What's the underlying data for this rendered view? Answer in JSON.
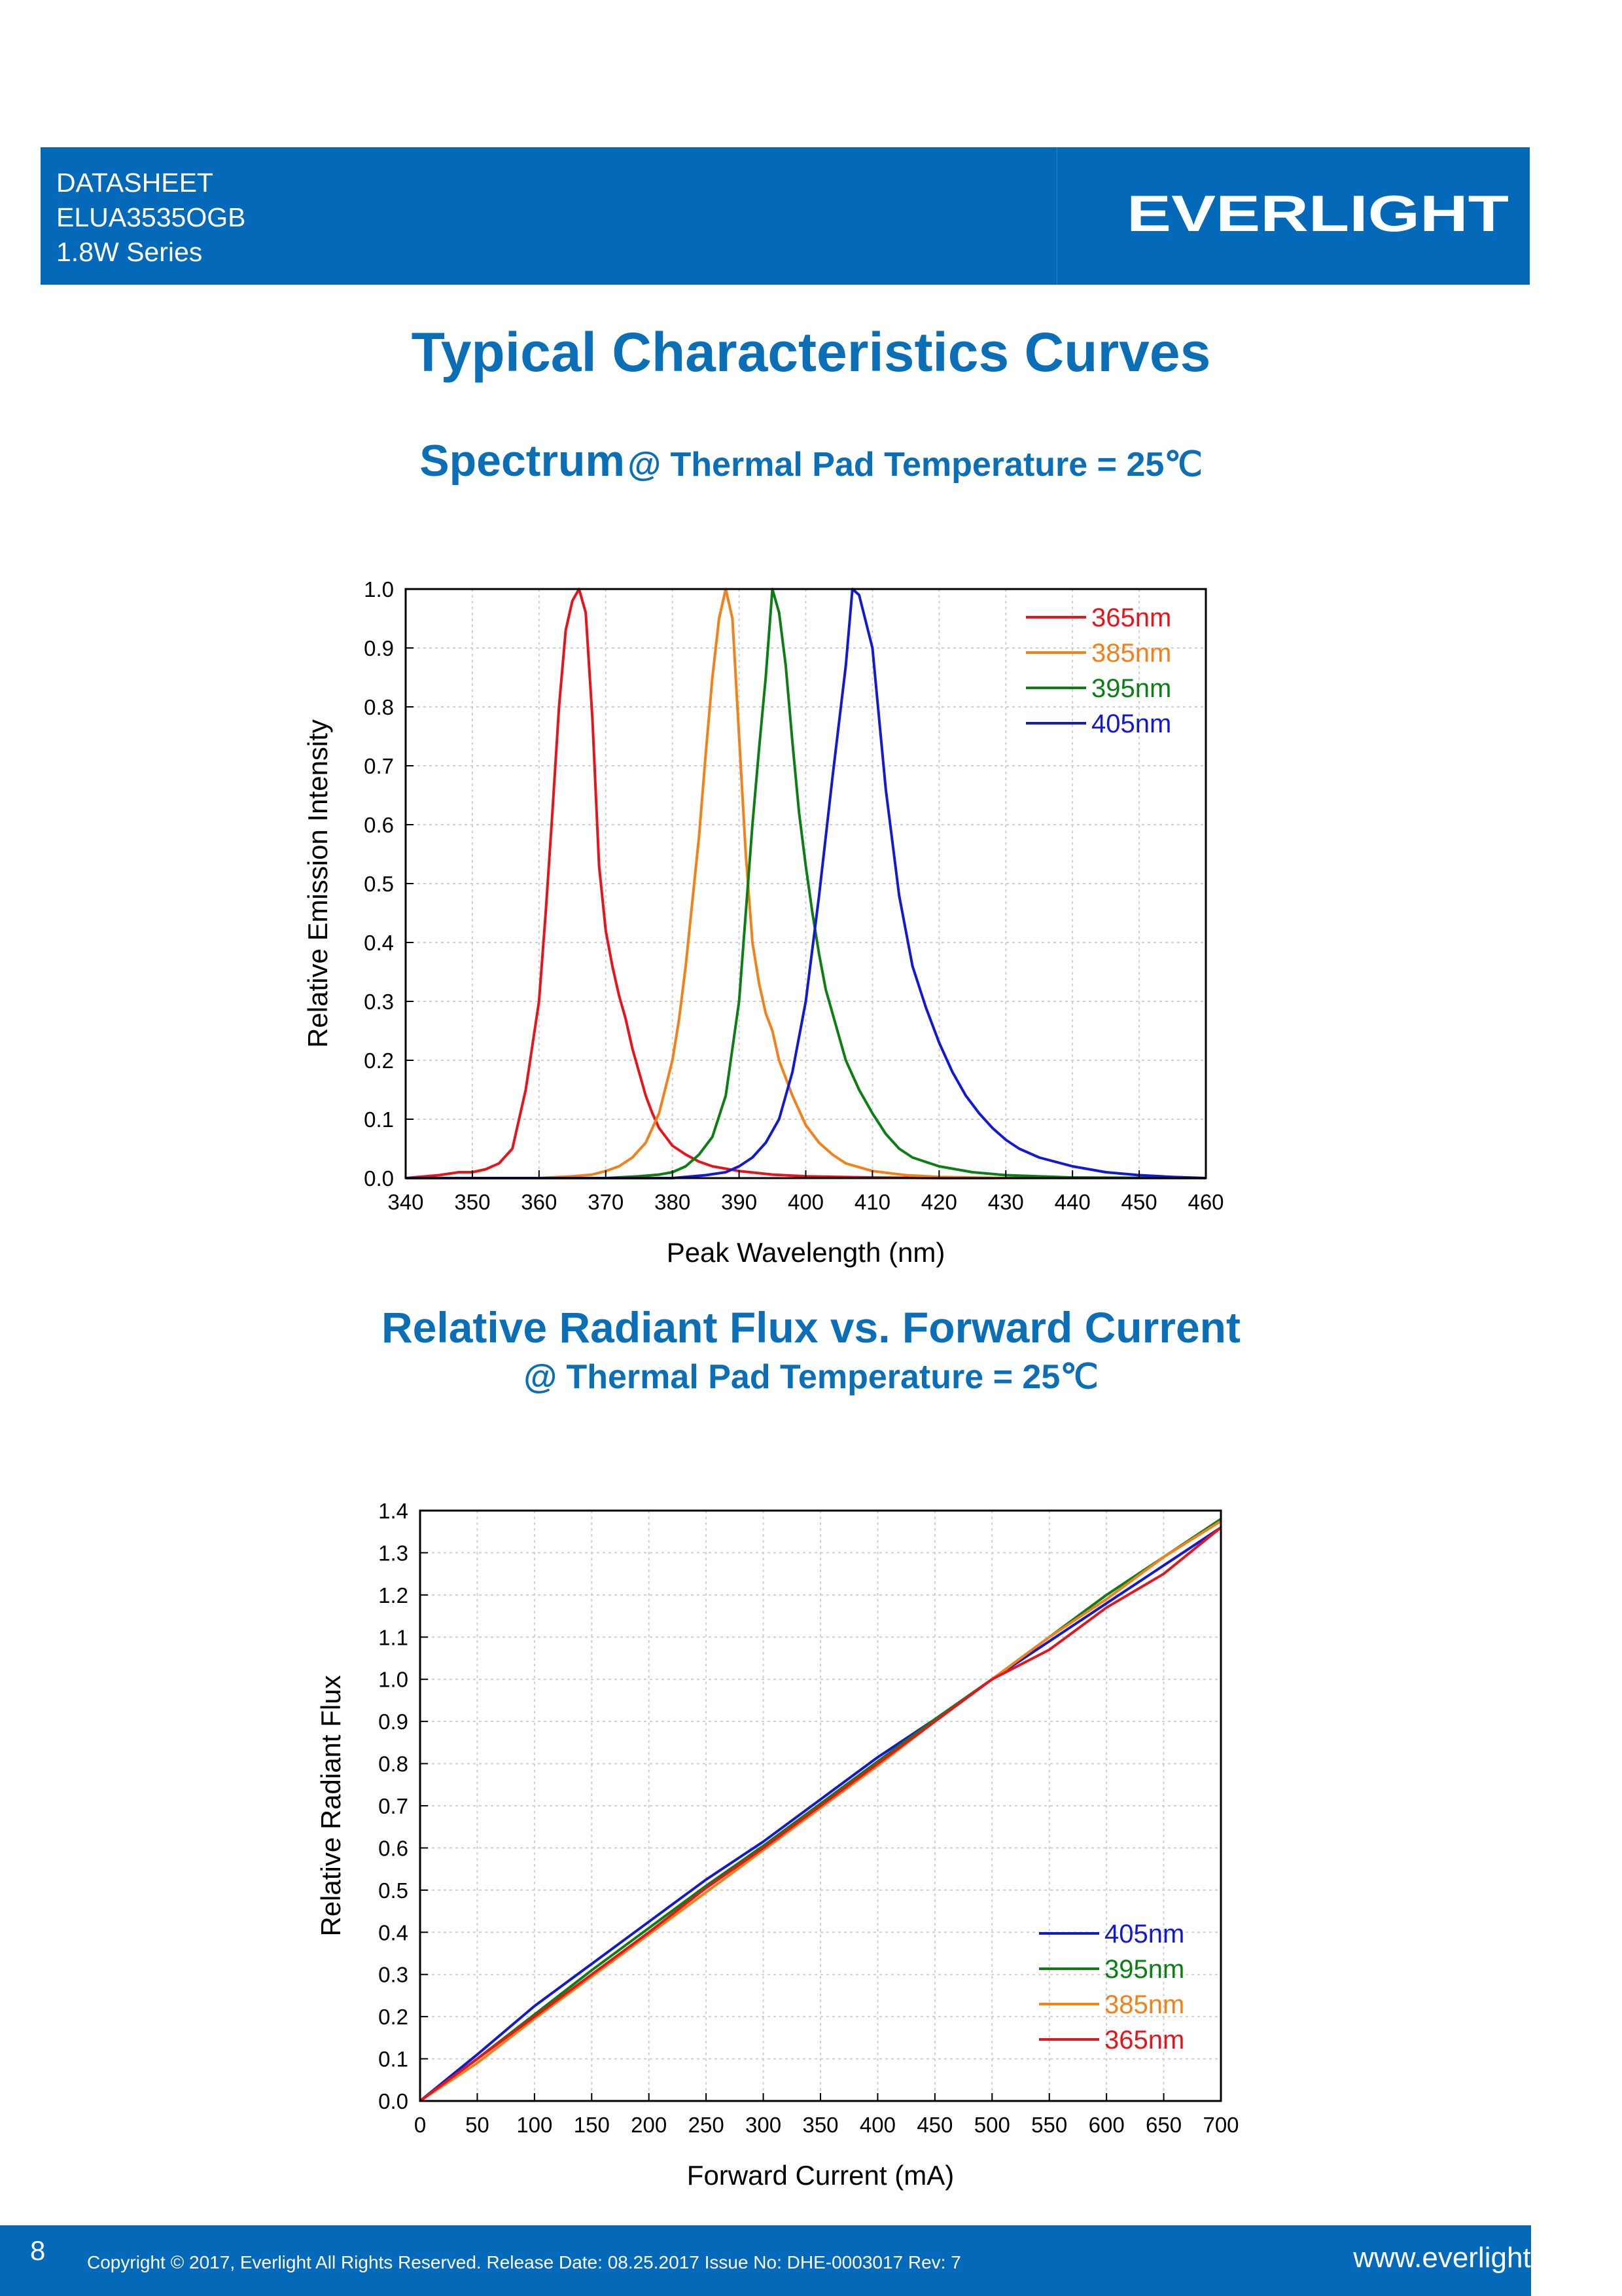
{
  "header": {
    "line1": "DATASHEET",
    "line2": "ELUA3535OGB",
    "line3": "1.8W Series",
    "logo_text": "EVERLIGHT",
    "bg_color": "#0469b8"
  },
  "page_title": "Typical Characteristics Curves",
  "spectrum_heading": {
    "main": "Spectrum",
    "condition": "@ Thermal Pad Temperature = 25℃"
  },
  "flux_heading": {
    "main": "Relative Radiant Flux vs. Forward Current",
    "condition": "@ Thermal Pad Temperature = 25℃"
  },
  "chart_data": [
    {
      "type": "line",
      "xlabel": "Peak Wavelength (nm)",
      "ylabel": "Relative Emission Intensity",
      "xlim": [
        340,
        460
      ],
      "ylim": [
        0,
        1.0
      ],
      "xticks": [
        "340",
        "350",
        "360",
        "370",
        "380",
        "390",
        "400",
        "410",
        "420",
        "430",
        "440",
        "450",
        "460"
      ],
      "yticks": [
        "0.0",
        "0.1",
        "0.2",
        "0.3",
        "0.4",
        "0.5",
        "0.6",
        "0.7",
        "0.8",
        "0.9",
        "1.0"
      ],
      "grid": true,
      "legend_position": "top-right",
      "series": [
        {
          "name": "365nm",
          "color": "#e8141c",
          "x": [
            340,
            345,
            348,
            350,
            352,
            354,
            356,
            358,
            360,
            361,
            362,
            363,
            364,
            365,
            366,
            367,
            368,
            369,
            370,
            371,
            372,
            373,
            374,
            375,
            376,
            377,
            378,
            380,
            382,
            384,
            386,
            390,
            395,
            400,
            410,
            420,
            460
          ],
          "y": [
            0.0,
            0.005,
            0.01,
            0.01,
            0.015,
            0.025,
            0.05,
            0.15,
            0.3,
            0.45,
            0.62,
            0.8,
            0.93,
            0.98,
            1.0,
            0.96,
            0.78,
            0.53,
            0.42,
            0.36,
            0.31,
            0.27,
            0.22,
            0.18,
            0.14,
            0.11,
            0.085,
            0.055,
            0.04,
            0.028,
            0.02,
            0.012,
            0.006,
            0.003,
            0.001,
            0.0,
            0.0
          ]
        },
        {
          "name": "385nm",
          "color": "#f38019",
          "x": [
            340,
            360,
            365,
            368,
            370,
            372,
            374,
            376,
            378,
            380,
            381,
            382,
            383,
            384,
            385,
            386,
            387,
            388,
            389,
            390,
            391,
            392,
            393,
            394,
            395,
            396,
            398,
            400,
            402,
            404,
            406,
            410,
            415,
            420,
            430,
            460
          ],
          "y": [
            0.0,
            0.0,
            0.003,
            0.006,
            0.012,
            0.02,
            0.035,
            0.06,
            0.11,
            0.2,
            0.27,
            0.36,
            0.47,
            0.58,
            0.72,
            0.85,
            0.95,
            1.0,
            0.95,
            0.75,
            0.55,
            0.4,
            0.33,
            0.28,
            0.25,
            0.2,
            0.14,
            0.09,
            0.06,
            0.04,
            0.025,
            0.012,
            0.005,
            0.002,
            0.0,
            0.0
          ]
        },
        {
          "name": "395nm",
          "color": "#0b7e14",
          "x": [
            340,
            370,
            375,
            378,
            380,
            382,
            384,
            386,
            388,
            390,
            391,
            392,
            393,
            394,
            395,
            396,
            397,
            398,
            399,
            400,
            401,
            402,
            403,
            404,
            405,
            406,
            408,
            410,
            412,
            414,
            416,
            420,
            425,
            430,
            440,
            460
          ],
          "y": [
            0.0,
            0.0,
            0.003,
            0.006,
            0.01,
            0.02,
            0.04,
            0.07,
            0.14,
            0.3,
            0.45,
            0.6,
            0.73,
            0.85,
            1.0,
            0.96,
            0.87,
            0.74,
            0.62,
            0.53,
            0.45,
            0.38,
            0.32,
            0.28,
            0.24,
            0.2,
            0.15,
            0.11,
            0.075,
            0.05,
            0.035,
            0.02,
            0.01,
            0.005,
            0.001,
            0.0
          ]
        },
        {
          "name": "405nm",
          "color": "#1318d4",
          "x": [
            340,
            380,
            385,
            388,
            390,
            392,
            394,
            396,
            398,
            400,
            402,
            404,
            406,
            407,
            408,
            410,
            412,
            414,
            416,
            418,
            420,
            422,
            424,
            426,
            428,
            430,
            432,
            435,
            440,
            445,
            450,
            455,
            460
          ],
          "y": [
            0.0,
            0.0,
            0.005,
            0.01,
            0.02,
            0.035,
            0.06,
            0.1,
            0.18,
            0.3,
            0.48,
            0.68,
            0.87,
            1.0,
            0.99,
            0.9,
            0.66,
            0.48,
            0.36,
            0.29,
            0.23,
            0.18,
            0.14,
            0.11,
            0.085,
            0.065,
            0.05,
            0.035,
            0.02,
            0.01,
            0.005,
            0.002,
            0.0
          ]
        }
      ]
    },
    {
      "type": "line",
      "xlabel": "Forward Current (mA)",
      "ylabel": "Relative Radiant Flux",
      "xlim": [
        0,
        700
      ],
      "ylim": [
        0,
        1.4
      ],
      "xticks": [
        "0",
        "50",
        "100",
        "150",
        "200",
        "250",
        "300",
        "350",
        "400",
        "450",
        "500",
        "550",
        "600",
        "650",
        "700"
      ],
      "yticks": [
        "0.0",
        "0.1",
        "0.2",
        "0.3",
        "0.4",
        "0.5",
        "0.6",
        "0.7",
        "0.8",
        "0.9",
        "1.0",
        "1.1",
        "1.2",
        "1.3",
        "1.4"
      ],
      "grid": true,
      "legend_position": "bottom-right",
      "series": [
        {
          "name": "405nm",
          "color": "#1318d4",
          "x": [
            0,
            50,
            100,
            150,
            200,
            250,
            300,
            350,
            400,
            450,
            500,
            550,
            600,
            650,
            700
          ],
          "y": [
            0.0,
            0.11,
            0.225,
            0.325,
            0.425,
            0.525,
            0.615,
            0.715,
            0.815,
            0.905,
            1.0,
            1.09,
            1.18,
            1.27,
            1.36
          ]
        },
        {
          "name": "395nm",
          "color": "#0b7e14",
          "x": [
            0,
            50,
            100,
            150,
            200,
            250,
            300,
            350,
            400,
            450,
            500,
            550,
            600,
            650,
            700
          ],
          "y": [
            0.0,
            0.1,
            0.205,
            0.31,
            0.41,
            0.51,
            0.605,
            0.705,
            0.805,
            0.905,
            1.0,
            1.1,
            1.2,
            1.29,
            1.38
          ]
        },
        {
          "name": "385nm",
          "color": "#f38019",
          "x": [
            0,
            50,
            100,
            150,
            200,
            250,
            300,
            350,
            400,
            450,
            500,
            550,
            600,
            650,
            700
          ],
          "y": [
            0.0,
            0.09,
            0.195,
            0.295,
            0.395,
            0.495,
            0.595,
            0.695,
            0.795,
            0.9,
            1.0,
            1.1,
            1.19,
            1.29,
            1.375
          ]
        },
        {
          "name": "365nm",
          "color": "#e8141c",
          "x": [
            0,
            50,
            100,
            150,
            200,
            250,
            300,
            350,
            400,
            450,
            500,
            550,
            600,
            650,
            700
          ],
          "y": [
            0.0,
            0.1,
            0.2,
            0.3,
            0.4,
            0.505,
            0.6,
            0.7,
            0.8,
            0.9,
            1.0,
            1.07,
            1.17,
            1.25,
            1.36
          ]
        }
      ]
    }
  ],
  "footer": {
    "page_number": "8",
    "copyright": "Copyright © 2017, Everlight All Rights Reserved. Release Date: 08.25.2017 Issue No: DHE-0003017 Rev: 7",
    "website": "www.everlight.com"
  }
}
